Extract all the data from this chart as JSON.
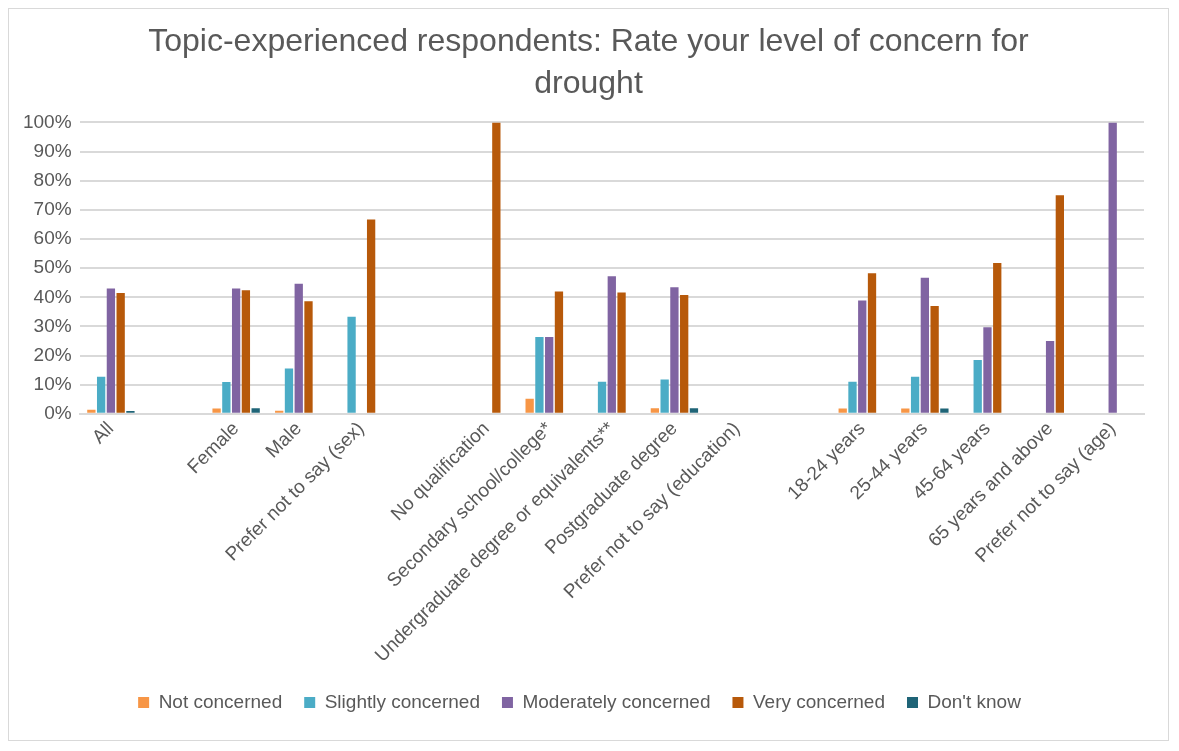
{
  "chart_data": {
    "type": "bar",
    "title": "Topic-experienced respondents: Rate your level of concern for drought",
    "categories": [
      "All",
      null,
      "Female",
      "Male",
      "Prefer not to say (sex)",
      null,
      "No qualification",
      "Secondary school/college*",
      "Undergraduate degree or equivalents**",
      "Postgraduate degree",
      "Prefer not to say (education)",
      null,
      "18-24 years",
      "25-44 years",
      "45-64 years",
      "65 years and above",
      "Prefer not to say (age)"
    ],
    "series": [
      {
        "name": "Not concerned",
        "color": "#f79646",
        "values": [
          1.4,
          null,
          1.8,
          1.1,
          0,
          null,
          0,
          5.2,
          0,
          1.9,
          0,
          null,
          1.8,
          1.8,
          0,
          0,
          0
        ]
      },
      {
        "name": "Slightly concerned",
        "color": "#4bacc6",
        "values": [
          12.7,
          null,
          10.9,
          15.6,
          33.3,
          null,
          0,
          26.4,
          11,
          11.8,
          0,
          null,
          11,
          12.7,
          18.5,
          0,
          0
        ]
      },
      {
        "name": "Moderately concerned",
        "color": "#8064a2",
        "values": [
          43,
          null,
          43,
          44.6,
          0,
          null,
          0,
          26.4,
          47.2,
          43.4,
          0,
          null,
          38.9,
          46.7,
          29.7,
          25,
          100
        ]
      },
      {
        "name": "Very concerned",
        "color": "#b7590a",
        "values": [
          41.5,
          null,
          42.4,
          38.6,
          66.7,
          null,
          100,
          42,
          41.6,
          40.8,
          0,
          null,
          48.2,
          37,
          51.8,
          75,
          0
        ]
      },
      {
        "name": "Don't know",
        "color": "#1f6477",
        "values": [
          1,
          null,
          1.9,
          0,
          0,
          null,
          0,
          0,
          0,
          1.9,
          0,
          null,
          0,
          1.8,
          0,
          0,
          0
        ]
      }
    ],
    "ylim": [
      0,
      100
    ],
    "yticks": [
      {
        "value": 0,
        "label": "0%"
      },
      {
        "value": 10,
        "label": "10%"
      },
      {
        "value": 20,
        "label": "20%"
      },
      {
        "value": 30,
        "label": "30%"
      },
      {
        "value": 40,
        "label": "40%"
      },
      {
        "value": 50,
        "label": "50%"
      },
      {
        "value": 60,
        "label": "60%"
      },
      {
        "value": 70,
        "label": "70%"
      },
      {
        "value": 80,
        "label": "80%"
      },
      {
        "value": 90,
        "label": "90%"
      },
      {
        "value": 100,
        "label": "100%"
      }
    ],
    "grid": "y",
    "legend": "bottom"
  }
}
